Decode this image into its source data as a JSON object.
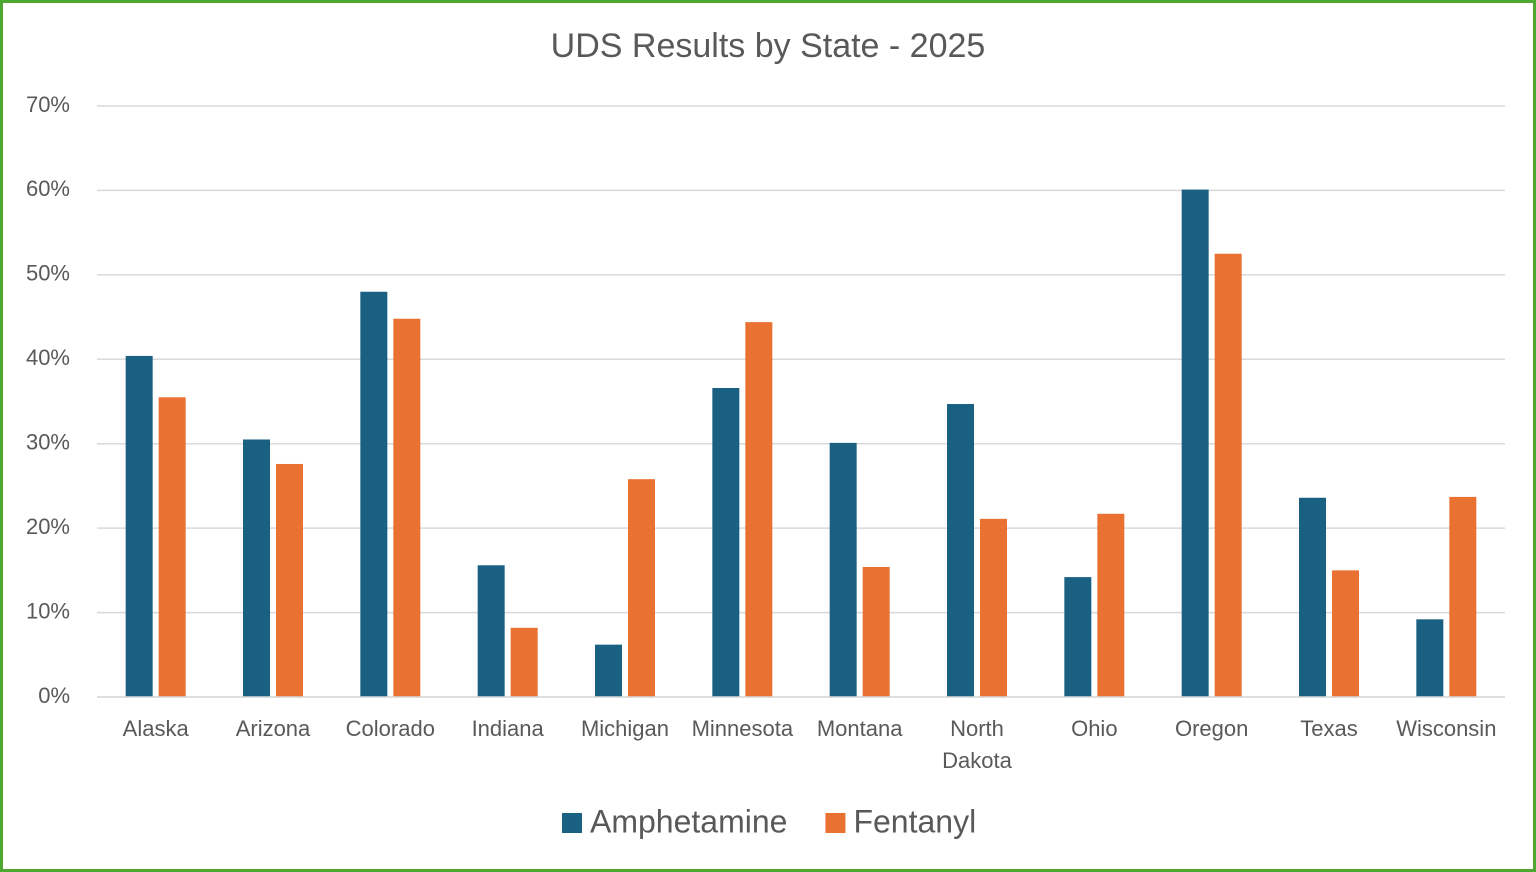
{
  "chart_data": {
    "type": "bar",
    "title": "UDS Results by State - 2025",
    "categories": [
      "Alaska",
      "Arizona",
      "Colorado",
      "Indiana",
      "Michigan",
      "Minnesota",
      "Montana",
      "North Dakota",
      "Ohio",
      "Oregon",
      "Texas",
      "Wisconsin"
    ],
    "series": [
      {
        "name": "Amphetamine",
        "color": "#1a6082",
        "values": [
          40.4,
          30.5,
          48.0,
          15.6,
          6.2,
          36.6,
          30.1,
          34.7,
          14.2,
          60.1,
          23.6,
          9.2
        ]
      },
      {
        "name": "Fentanyl",
        "color": "#e97132",
        "values": [
          35.5,
          27.6,
          44.8,
          8.2,
          25.8,
          44.4,
          15.4,
          21.1,
          21.7,
          52.5,
          15.0,
          23.7
        ]
      }
    ],
    "ylim": [
      0,
      70
    ],
    "yticks": [
      {
        "value": 0,
        "label": "0%"
      },
      {
        "value": 10,
        "label": "10%"
      },
      {
        "value": 20,
        "label": "20%"
      },
      {
        "value": 30,
        "label": "30%"
      },
      {
        "value": 40,
        "label": "40%"
      },
      {
        "value": 50,
        "label": "50%"
      },
      {
        "value": 60,
        "label": "60%"
      },
      {
        "value": 70,
        "label": "70%"
      }
    ],
    "grid": true,
    "legend": "bottom"
  }
}
